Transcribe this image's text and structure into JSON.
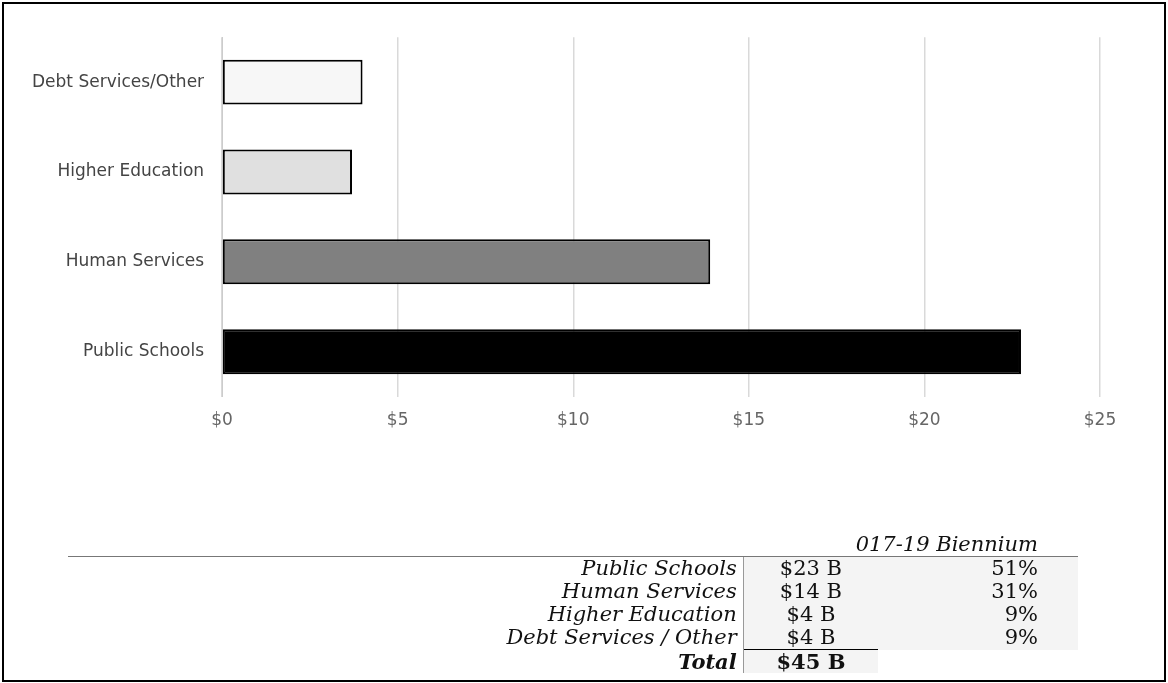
{
  "chart_data": {
    "type": "bar",
    "orientation": "horizontal",
    "categories": [
      "Debt Services/Other",
      "Higher Education",
      "Human Services",
      "Public Schools"
    ],
    "values": [
      4.0,
      3.7,
      13.9,
      22.75
    ],
    "colors": [
      "#f7f7f7",
      "#e0e0e0",
      "#808080",
      "#000000"
    ],
    "xlim": [
      0,
      25
    ],
    "xticks": [
      {
        "value": 0,
        "label": "$0"
      },
      {
        "value": 5,
        "label": "$5"
      },
      {
        "value": 10,
        "label": "$10"
      },
      {
        "value": 15,
        "label": "$15"
      },
      {
        "value": 20,
        "label": "$20"
      },
      {
        "value": 25,
        "label": "$25"
      }
    ],
    "grid": "x",
    "legend": false,
    "annotations": [
      "017-19 Biennium",
      "Public Schools",
      "$23 B",
      "51%",
      "Human Services",
      "$14 B",
      "31%",
      "Higher Education",
      "$4 B",
      "9%",
      "Debt Services / Other",
      "$4 B",
      "9%",
      "Total",
      "$45 B"
    ]
  }
}
